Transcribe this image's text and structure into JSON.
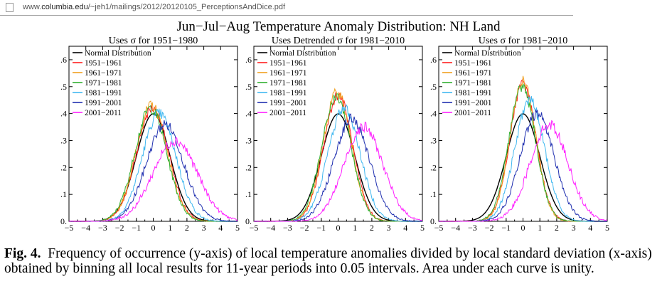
{
  "browser": {
    "url_prefix": "www.",
    "url_domain": "columbia.edu",
    "url_path": "/~jeh1/mailings/2012/20120105_PerceptionsAndDice.pdf"
  },
  "caption": {
    "label": "Fig. 4.",
    "text": "Frequency of occurrence (y-axis) of local temperature anomalies divided by local standard deviation (x-axis) obtained by binning all local results for 11-year periods into 0.05 intervals.  Area under each curve is unity."
  },
  "colors": {
    "Normal Distribution": "#000000",
    "1951-1961": "#ff2020",
    "1961-1971": "#f0a020",
    "1971-1981": "#30b030",
    "1981-1991": "#40b8f0",
    "1991-2001": "#2030b0",
    "2001-2011": "#ff20ff"
  },
  "chart_data": {
    "type": "line",
    "title": "Jun−Jul−Aug Temperature Anomaly Distribution: NH Land",
    "xlim": [
      -5,
      5
    ],
    "ylim": [
      0,
      0.65
    ],
    "x_ticks": [
      "−5",
      "−4",
      "−3",
      "−2",
      "−1",
      "0",
      "1",
      "2",
      "3",
      "4",
      "5"
    ],
    "y_ticks": [
      "0.",
      ".1",
      ".2",
      ".3",
      ".4",
      ".5",
      ".6"
    ],
    "y_tick_values": [
      0,
      0.1,
      0.2,
      0.3,
      0.4,
      0.5,
      0.6
    ],
    "legend_position": "top-left",
    "panels": [
      {
        "title": "Uses σ for 1951−1980",
        "series": [
          {
            "name": "Normal Distribution",
            "mean": 0.0,
            "sd": 1.0,
            "peak": 0.399
          },
          {
            "name": "1951−1961",
            "mean": -0.05,
            "sd": 0.95,
            "peak": 0.42
          },
          {
            "name": "1961−1971",
            "mean": -0.1,
            "sd": 0.93,
            "peak": 0.43
          },
          {
            "name": "1971−1981",
            "mean": -0.15,
            "sd": 0.95,
            "peak": 0.42
          },
          {
            "name": "1981−1991",
            "mean": 0.35,
            "sd": 1.0,
            "peak": 0.4
          },
          {
            "name": "1991−2001",
            "mean": 0.7,
            "sd": 1.1,
            "peak": 0.36
          },
          {
            "name": "2001−2011",
            "mean": 1.3,
            "sd": 1.3,
            "peak": 0.3
          }
        ]
      },
      {
        "title": "Uses Detrended σ for 1981−2010",
        "series": [
          {
            "name": "Normal Distribution",
            "mean": 0.0,
            "sd": 1.0,
            "peak": 0.399
          },
          {
            "name": "1951−1961",
            "mean": 0.0,
            "sd": 0.85,
            "peak": 0.47
          },
          {
            "name": "1961−1971",
            "mean": -0.05,
            "sd": 0.84,
            "peak": 0.48
          },
          {
            "name": "1971−1981",
            "mean": -0.1,
            "sd": 0.87,
            "peak": 0.46
          },
          {
            "name": "1981−1991",
            "mean": 0.35,
            "sd": 0.95,
            "peak": 0.42
          },
          {
            "name": "1991−2001",
            "mean": 0.8,
            "sd": 1.05,
            "peak": 0.38
          },
          {
            "name": "2001−2011",
            "mean": 1.5,
            "sd": 1.15,
            "peak": 0.35
          }
        ]
      },
      {
        "title": "Uses σ for 1981−2010",
        "series": [
          {
            "name": "Normal Distribution",
            "mean": 0.0,
            "sd": 1.0,
            "peak": 0.399
          },
          {
            "name": "1951−1961",
            "mean": 0.0,
            "sd": 0.78,
            "peak": 0.51
          },
          {
            "name": "1961−1971",
            "mean": 0.0,
            "sd": 0.76,
            "peak": 0.52
          },
          {
            "name": "1971−1981",
            "mean": -0.05,
            "sd": 0.8,
            "peak": 0.5
          },
          {
            "name": "1981−1991",
            "mean": 0.4,
            "sd": 0.88,
            "peak": 0.45
          },
          {
            "name": "1991−2001",
            "mean": 0.85,
            "sd": 1.0,
            "peak": 0.4
          },
          {
            "name": "2001−2011",
            "mean": 1.55,
            "sd": 1.12,
            "peak": 0.36
          }
        ]
      }
    ]
  }
}
